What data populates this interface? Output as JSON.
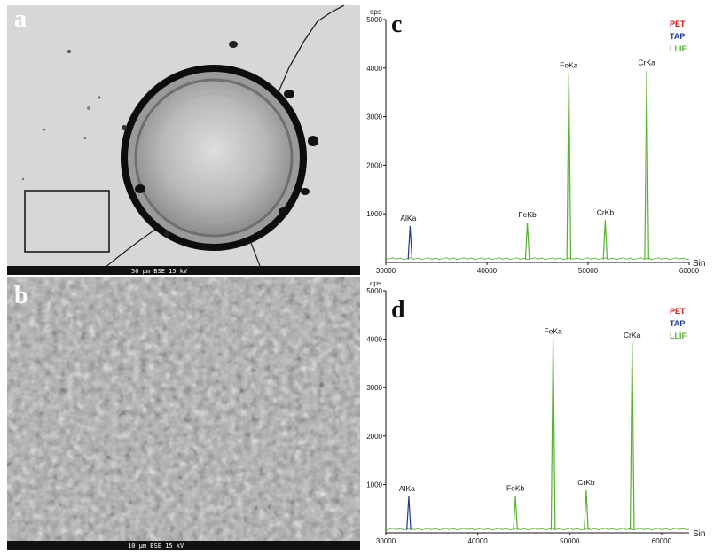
{
  "panels": {
    "a": {
      "label": "a",
      "scale_bar": "50 μm  BSE  15 kV"
    },
    "b": {
      "label": "b",
      "scale_bar": "10 μm  BSE  15 kV"
    }
  },
  "chart_data": [
    {
      "panel": "c",
      "type": "line",
      "ylabel": "cps",
      "xlabel": "Sin",
      "xlim": [
        30000,
        60000
      ],
      "ylim": [
        0,
        5000
      ],
      "xticks": [
        "30000",
        "40000",
        "50000",
        "60000"
      ],
      "yticks": [
        "1000",
        "2000",
        "3000",
        "4000",
        "5000"
      ],
      "legend": {
        "position": "top-right",
        "entries": [
          {
            "name": "PET",
            "color": "#cc1111"
          },
          {
            "name": "TAP",
            "color": "#1f3b9a"
          },
          {
            "name": "LLIF",
            "color": "#58b032"
          }
        ]
      },
      "peaks": [
        {
          "label": "AlKa",
          "x": 32400,
          "y": 750,
          "series": "TAP"
        },
        {
          "label": "FeKb",
          "x": 44000,
          "y": 820,
          "series": "LLIF"
        },
        {
          "label": "FeKa",
          "x": 48100,
          "y": 3900,
          "series": "LLIF"
        },
        {
          "label": "CrKb",
          "x": 51700,
          "y": 870,
          "series": "LLIF"
        },
        {
          "label": "CrKa",
          "x": 55800,
          "y": 3950,
          "series": "LLIF"
        }
      ],
      "baseline": 60
    },
    {
      "panel": "d",
      "type": "line",
      "ylabel": "cps",
      "xlabel": "Sin",
      "xlim": [
        30000,
        63000
      ],
      "ylim": [
        0,
        5000
      ],
      "xticks": [
        "30000",
        "40000",
        "50000",
        "60000"
      ],
      "yticks": [
        "1000",
        "2000",
        "3000",
        "4000",
        "5000"
      ],
      "legend": {
        "position": "top-right",
        "entries": [
          {
            "name": "PET",
            "color": "#cc1111"
          },
          {
            "name": "TAP",
            "color": "#1f3b9a"
          },
          {
            "name": "LLIF",
            "color": "#58b032"
          }
        ]
      },
      "peaks": [
        {
          "label": "AlKa",
          "x": 32500,
          "y": 750,
          "series": "TAP"
        },
        {
          "label": "FeKb",
          "x": 44100,
          "y": 760,
          "series": "LLIF"
        },
        {
          "label": "FeKa",
          "x": 48200,
          "y": 4000,
          "series": "LLIF"
        },
        {
          "label": "CrKb",
          "x": 51800,
          "y": 880,
          "series": "LLIF"
        },
        {
          "label": "CrKa",
          "x": 56800,
          "y": 3920,
          "series": "LLIF"
        }
      ],
      "baseline": 60
    }
  ]
}
